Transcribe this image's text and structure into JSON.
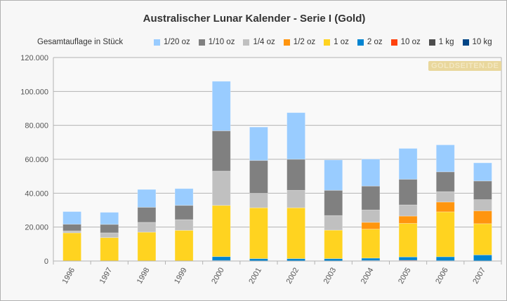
{
  "chart_data": {
    "type": "bar",
    "stacked": true,
    "title": "Australischer Lunar Kalender - Serie I (Gold)",
    "ylabel": "Gesamtauflage in Stück",
    "xlabel": "",
    "ylim": [
      0,
      120000
    ],
    "yticks": [
      "0",
      "20.000",
      "40.000",
      "60.000",
      "80.000",
      "100.000",
      "120.000"
    ],
    "ytick_values": [
      0,
      20000,
      40000,
      60000,
      80000,
      100000,
      120000
    ],
    "grid": true,
    "legend_placement": "top",
    "categories": [
      "1996",
      "1997",
      "1998",
      "1999",
      "2000",
      "2001",
      "2002",
      "2003",
      "2004",
      "2005",
      "2006",
      "2007"
    ],
    "series": [
      {
        "name": "10 kg",
        "color": "#004586",
        "values": [
          0,
          0,
          0,
          0,
          0,
          0,
          0,
          0,
          0,
          0,
          0,
          0
        ]
      },
      {
        "name": "1 kg",
        "color": "#4d4d4d",
        "values": [
          0,
          0,
          0,
          0,
          300,
          0,
          0,
          0,
          0,
          0,
          200,
          0
        ]
      },
      {
        "name": "10 oz",
        "color": "#ff420e",
        "values": [
          0,
          0,
          0,
          0,
          0,
          0,
          0,
          0,
          300,
          400,
          0,
          0
        ]
      },
      {
        "name": "2 oz",
        "color": "#0084d1",
        "values": [
          0,
          0,
          0,
          0,
          2300,
          1400,
          1400,
          1400,
          1400,
          2000,
          2300,
          3600
        ]
      },
      {
        "name": "1 oz",
        "color": "#ffd320",
        "values": [
          16600,
          13800,
          17000,
          18100,
          30200,
          30000,
          30000,
          16800,
          17100,
          19800,
          26500,
          18400
        ]
      },
      {
        "name": "1/2 oz",
        "color": "#ff950e",
        "values": [
          0,
          0,
          0,
          0,
          0,
          0,
          0,
          0,
          4000,
          4300,
          5800,
          7600
        ]
      },
      {
        "name": "1/4 oz",
        "color": "#c0c0c0",
        "values": [
          1200,
          2800,
          5800,
          6300,
          20200,
          8500,
          10300,
          8600,
          7300,
          6600,
          6100,
          6600
        ]
      },
      {
        "name": "1/10 oz",
        "color": "#808080",
        "values": [
          3900,
          5000,
          8900,
          8400,
          23800,
          19400,
          18300,
          14900,
          14100,
          15100,
          11700,
          11000
        ]
      },
      {
        "name": "1/20 oz",
        "color": "#99ccff",
        "values": [
          7450,
          7100,
          10500,
          9900,
          29200,
          19700,
          27500,
          17900,
          15900,
          18200,
          15900,
          10700
        ]
      }
    ],
    "legend_order": [
      "1/20 oz",
      "1/10 oz",
      "1/4 oz",
      "1/2 oz",
      "1 oz",
      "2 oz",
      "10 oz",
      "1 kg",
      "10 kg"
    ]
  },
  "watermark": "GOLDSEITEN.DE"
}
